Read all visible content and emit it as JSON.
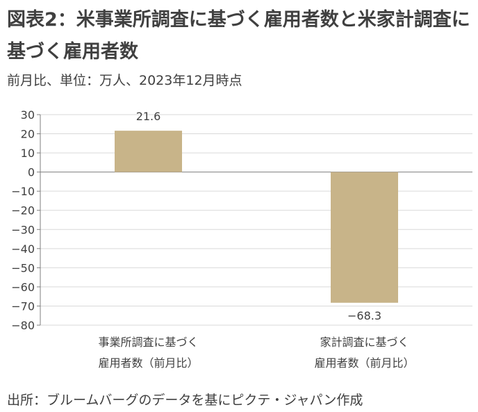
{
  "title": "図表2：米事業所調査に基づく雇用者数と米家計調査に基づく雇用者数",
  "subtitle": "前月比、単位：万人、2023年12月時点",
  "source": "出所：ブルームバーグのデータを基にピクテ・ジャパン作成",
  "colors": {
    "bar": "#c8b489",
    "axis": "#7f7f7f",
    "grid": "#d9d9d9",
    "text": "#404040"
  },
  "chart_data": {
    "type": "bar",
    "categories": [
      [
        "事業所調査に基づく",
        "雇用者数（前月比）"
      ],
      [
        "家計調査に基づく",
        "雇用者数（前月比）"
      ]
    ],
    "values": [
      21.6,
      -68.3
    ],
    "value_labels": [
      "21.6",
      "−68.3"
    ],
    "ylim": [
      -80,
      30
    ],
    "yticks": [
      30,
      20,
      10,
      0,
      -10,
      -20,
      -30,
      -40,
      -50,
      -60,
      -70,
      -80
    ],
    "ytick_labels": [
      "30",
      "20",
      "10",
      "0",
      "−10",
      "−20",
      "−30",
      "−40",
      "−50",
      "−60",
      "−70",
      "−80"
    ],
    "grid": true,
    "legend": "none"
  }
}
